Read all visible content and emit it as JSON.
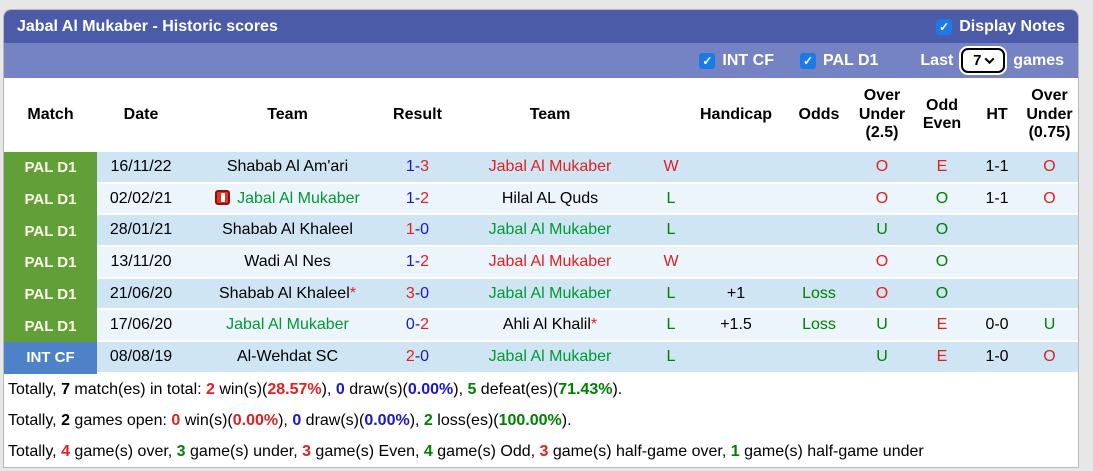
{
  "header": {
    "title": "Jabal Al Mukaber - Historic scores",
    "display_notes_label": "Display Notes",
    "display_notes_checked": true,
    "filters": [
      {
        "label": "INT CF",
        "checked": true
      },
      {
        "label": "PAL D1",
        "checked": true
      }
    ],
    "last_label": "Last",
    "games_count": "7",
    "games_label": "games"
  },
  "table": {
    "columns": [
      "Match",
      "Date",
      "Team",
      "Result",
      "Team",
      "",
      "Handicap",
      "Odds",
      "Over\nUnder\n(2.5)",
      "Odd\nEven",
      "HT",
      "Over\nUnder\n(0.75)"
    ],
    "rows": [
      {
        "league": "PAL D1",
        "league_key": "green",
        "date": "16/11/22",
        "team1": {
          "name": "Shabab Al Am'ari",
          "c": "black",
          "icon": false,
          "star": false
        },
        "result": [
          {
            "t": "1",
            "c": "blue"
          },
          {
            "t": "-",
            "c": "blue"
          },
          {
            "t": "3",
            "c": "red"
          }
        ],
        "team2": {
          "name": "Jabal Al Mukaber",
          "c": "red",
          "icon": false,
          "star": false
        },
        "wl": {
          "t": "W",
          "c": "red"
        },
        "handicap": "",
        "odds": {
          "t": "",
          "c": "black"
        },
        "ou25": {
          "t": "O",
          "c": "red"
        },
        "oddeven": {
          "t": "E",
          "c": "red"
        },
        "ht": "1-1",
        "ou075": {
          "t": "O",
          "c": "red"
        }
      },
      {
        "league": "PAL D1",
        "league_key": "green",
        "date": "02/02/21",
        "team1": {
          "name": "Jabal Al Mukaber",
          "c": "green",
          "icon": true,
          "star": false
        },
        "result": [
          {
            "t": "1",
            "c": "blue"
          },
          {
            "t": "-",
            "c": "blue"
          },
          {
            "t": "2",
            "c": "red"
          }
        ],
        "team2": {
          "name": "Hilal AL Quds",
          "c": "black",
          "icon": false,
          "star": false
        },
        "wl": {
          "t": "L",
          "c": "green"
        },
        "handicap": "",
        "odds": {
          "t": "",
          "c": "black"
        },
        "ou25": {
          "t": "O",
          "c": "red"
        },
        "oddeven": {
          "t": "O",
          "c": "green"
        },
        "ht": "1-1",
        "ou075": {
          "t": "O",
          "c": "red"
        }
      },
      {
        "league": "PAL D1",
        "league_key": "green",
        "date": "28/01/21",
        "team1": {
          "name": "Shabab Al Khaleel",
          "c": "black",
          "icon": false,
          "star": false
        },
        "result": [
          {
            "t": "1",
            "c": "red"
          },
          {
            "t": "-",
            "c": "blue"
          },
          {
            "t": "0",
            "c": "blue"
          }
        ],
        "team2": {
          "name": "Jabal Al Mukaber",
          "c": "green",
          "icon": false,
          "star": false
        },
        "wl": {
          "t": "L",
          "c": "green"
        },
        "handicap": "",
        "odds": {
          "t": "",
          "c": "black"
        },
        "ou25": {
          "t": "U",
          "c": "green"
        },
        "oddeven": {
          "t": "O",
          "c": "green"
        },
        "ht": "",
        "ou075": {
          "t": "",
          "c": "black"
        }
      },
      {
        "league": "PAL D1",
        "league_key": "green",
        "date": "13/11/20",
        "team1": {
          "name": "Wadi Al Nes",
          "c": "black",
          "icon": false,
          "star": false
        },
        "result": [
          {
            "t": "1",
            "c": "blue"
          },
          {
            "t": "-",
            "c": "blue"
          },
          {
            "t": "2",
            "c": "red"
          }
        ],
        "team2": {
          "name": "Jabal Al Mukaber",
          "c": "red",
          "icon": false,
          "star": false
        },
        "wl": {
          "t": "W",
          "c": "red"
        },
        "handicap": "",
        "odds": {
          "t": "",
          "c": "black"
        },
        "ou25": {
          "t": "O",
          "c": "red"
        },
        "oddeven": {
          "t": "O",
          "c": "green"
        },
        "ht": "",
        "ou075": {
          "t": "",
          "c": "black"
        }
      },
      {
        "league": "PAL D1",
        "league_key": "green",
        "date": "21/06/20",
        "team1": {
          "name": "Shabab Al Khaleel",
          "c": "black",
          "icon": false,
          "star": true
        },
        "result": [
          {
            "t": "3",
            "c": "red"
          },
          {
            "t": "-",
            "c": "blue"
          },
          {
            "t": "0",
            "c": "blue"
          }
        ],
        "team2": {
          "name": "Jabal Al Mukaber",
          "c": "green",
          "icon": false,
          "star": false
        },
        "wl": {
          "t": "L",
          "c": "green"
        },
        "handicap": "+1",
        "odds": {
          "t": "Loss",
          "c": "green"
        },
        "ou25": {
          "t": "O",
          "c": "red"
        },
        "oddeven": {
          "t": "O",
          "c": "green"
        },
        "ht": "",
        "ou075": {
          "t": "",
          "c": "black"
        }
      },
      {
        "league": "PAL D1",
        "league_key": "green",
        "date": "17/06/20",
        "team1": {
          "name": "Jabal Al Mukaber",
          "c": "green",
          "icon": false,
          "star": false
        },
        "result": [
          {
            "t": "0",
            "c": "blue"
          },
          {
            "t": "-",
            "c": "blue"
          },
          {
            "t": "2",
            "c": "red"
          }
        ],
        "team2": {
          "name": "Ahli Al Khalil",
          "c": "black",
          "icon": false,
          "star": true
        },
        "wl": {
          "t": "L",
          "c": "green"
        },
        "handicap": "+1.5",
        "odds": {
          "t": "Loss",
          "c": "green"
        },
        "ou25": {
          "t": "U",
          "c": "green"
        },
        "oddeven": {
          "t": "E",
          "c": "red"
        },
        "ht": "0-0",
        "ou075": {
          "t": "U",
          "c": "green"
        }
      },
      {
        "league": "INT CF",
        "league_key": "blue",
        "date": "08/08/19",
        "team1": {
          "name": "Al-Wehdat SC",
          "c": "black",
          "icon": false,
          "star": false
        },
        "result": [
          {
            "t": "2",
            "c": "red"
          },
          {
            "t": "-",
            "c": "blue"
          },
          {
            "t": "0",
            "c": "blue"
          }
        ],
        "team2": {
          "name": "Jabal Al Mukaber",
          "c": "green",
          "icon": false,
          "star": false
        },
        "wl": {
          "t": "L",
          "c": "green"
        },
        "handicap": "",
        "odds": {
          "t": "",
          "c": "black"
        },
        "ou25": {
          "t": "U",
          "c": "green"
        },
        "oddeven": {
          "t": "E",
          "c": "red"
        },
        "ht": "1-0",
        "ou075": {
          "t": "O",
          "c": "red"
        }
      }
    ]
  },
  "footer": {
    "lines": [
      [
        {
          "t": "Totally, ",
          "c": "black",
          "b": false
        },
        {
          "t": "7",
          "c": "black",
          "b": true
        },
        {
          "t": " match(es) in total: ",
          "c": "black",
          "b": false
        },
        {
          "t": "2",
          "c": "red",
          "b": true
        },
        {
          "t": " win(s)(",
          "c": "black",
          "b": false
        },
        {
          "t": "28.57%",
          "c": "red",
          "b": true
        },
        {
          "t": "), ",
          "c": "black",
          "b": false
        },
        {
          "t": "0",
          "c": "blue",
          "b": true
        },
        {
          "t": " draw(s)(",
          "c": "black",
          "b": false
        },
        {
          "t": "0.00%",
          "c": "blue",
          "b": true
        },
        {
          "t": "), ",
          "c": "black",
          "b": false
        },
        {
          "t": "5",
          "c": "green",
          "b": true
        },
        {
          "t": " defeat(es)(",
          "c": "black",
          "b": false
        },
        {
          "t": "71.43%",
          "c": "green",
          "b": true
        },
        {
          "t": ").",
          "c": "black",
          "b": false
        }
      ],
      [
        {
          "t": "Totally, ",
          "c": "black",
          "b": false
        },
        {
          "t": "2",
          "c": "black",
          "b": true
        },
        {
          "t": " games open: ",
          "c": "black",
          "b": false
        },
        {
          "t": "0",
          "c": "red",
          "b": true
        },
        {
          "t": " win(s)(",
          "c": "black",
          "b": false
        },
        {
          "t": "0.00%",
          "c": "red",
          "b": true
        },
        {
          "t": "), ",
          "c": "black",
          "b": false
        },
        {
          "t": "0",
          "c": "blue",
          "b": true
        },
        {
          "t": " draw(s)(",
          "c": "black",
          "b": false
        },
        {
          "t": "0.00%",
          "c": "blue",
          "b": true
        },
        {
          "t": "), ",
          "c": "black",
          "b": false
        },
        {
          "t": "2",
          "c": "green",
          "b": true
        },
        {
          "t": " loss(es)(",
          "c": "black",
          "b": false
        },
        {
          "t": "100.00%",
          "c": "green",
          "b": true
        },
        {
          "t": ").",
          "c": "black",
          "b": false
        }
      ],
      [
        {
          "t": "Totally, ",
          "c": "black",
          "b": false
        },
        {
          "t": "4",
          "c": "red",
          "b": true
        },
        {
          "t": " game(s) over, ",
          "c": "black",
          "b": false
        },
        {
          "t": "3",
          "c": "green",
          "b": true
        },
        {
          "t": " game(s) under, ",
          "c": "black",
          "b": false
        },
        {
          "t": "3",
          "c": "red",
          "b": true
        },
        {
          "t": " game(s) Even, ",
          "c": "black",
          "b": false
        },
        {
          "t": "4",
          "c": "green",
          "b": true
        },
        {
          "t": " game(s) Odd, ",
          "c": "black",
          "b": false
        },
        {
          "t": "3",
          "c": "red",
          "b": true
        },
        {
          "t": " game(s) half-game over, ",
          "c": "black",
          "b": false
        },
        {
          "t": "1",
          "c": "green",
          "b": true
        },
        {
          "t": " game(s) half-game under",
          "c": "black",
          "b": false
        }
      ]
    ]
  },
  "colors": {
    "red": "#e02020",
    "blue": "#1818c8",
    "green": "#008000",
    "team_green": "#009933",
    "black": "#000000",
    "badge_green": "#61a038",
    "badge_blue": "#4d82c8",
    "badge_green_text": "#fffbe9",
    "badge_blue_text": "#ffffff",
    "checkbox_blue": "#1a7ae8",
    "titlebar": "#4c5ba8",
    "subbar": "#7583c4",
    "row_dark": "#cfe5f4",
    "row_light": "#ebf5fb"
  }
}
